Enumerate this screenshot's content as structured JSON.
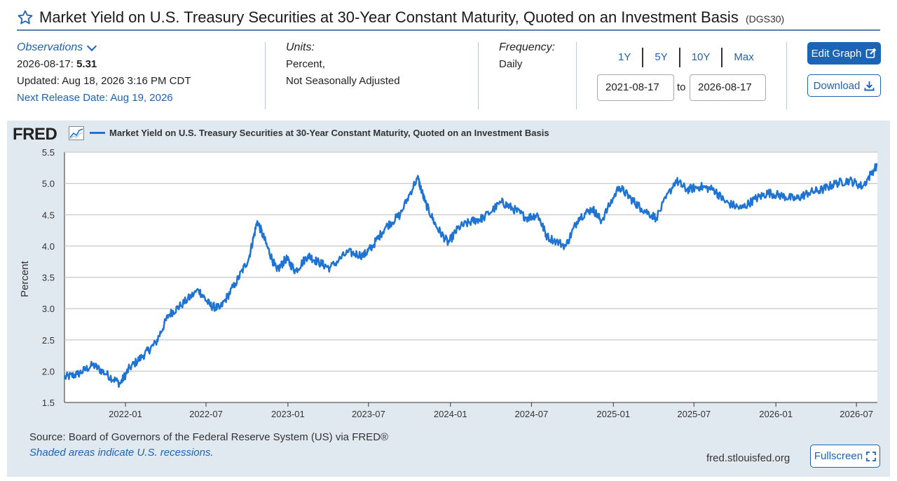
{
  "header": {
    "title": "Market Yield on U.S. Treasury Securities at 30-Year Constant Maturity, Quoted on an Investment Basis",
    "series_id": "(DGS30)"
  },
  "observations": {
    "label": "Observations",
    "date": "2026-08-17:",
    "value": "5.31",
    "updated": "Updated: Aug 18, 2026 3:16 PM CDT",
    "next_release": "Next Release Date: Aug 19, 2026"
  },
  "units": {
    "label": "Units:",
    "line1": "Percent,",
    "line2": "Not Seasonally Adjusted"
  },
  "frequency": {
    "label": "Frequency:",
    "value": "Daily"
  },
  "ranges": [
    "1Y",
    "5Y",
    "10Y",
    "Max"
  ],
  "date_range": {
    "start": "2021-08-17",
    "to": "to",
    "end": "2026-08-17"
  },
  "buttons": {
    "edit": "Edit Graph",
    "download": "Download",
    "fullscreen": "Fullscreen"
  },
  "fred": {
    "logo": "FRED"
  },
  "footer": {
    "source": "Source: Board of Governors of the Federal Reserve System (US) via FRED®",
    "recessions": "Shaded areas indicate U.S. recessions.",
    "site": "fred.stlouisfed.org"
  },
  "colors": {
    "line": "#1f73d2",
    "panel": "#e1e9f0",
    "accent": "#1d64b5"
  },
  "chart_data": {
    "type": "line",
    "ylabel": "Percent",
    "ylim": [
      1.5,
      5.5
    ],
    "yticks": [
      1.5,
      2.0,
      2.5,
      3.0,
      3.5,
      4.0,
      4.5,
      5.0,
      5.5
    ],
    "xlim": [
      "2021-08-17",
      "2026-08-17"
    ],
    "xticks": [
      "2022-01",
      "2022-07",
      "2023-01",
      "2023-07",
      "2024-01",
      "2024-07",
      "2025-01",
      "2025-07",
      "2026-01",
      "2026-07"
    ],
    "grid": true,
    "legend_position": "top-left",
    "series": [
      {
        "name": "Market Yield on U.S. Treasury Securities at 30-Year Constant Maturity, Quoted on an Investment Basis",
        "x": [
          "2021-08-17",
          "2021-09-15",
          "2021-10-20",
          "2021-11-20",
          "2021-12-20",
          "2022-01-10",
          "2022-02-10",
          "2022-03-10",
          "2022-04-08",
          "2022-05-05",
          "2022-06-14",
          "2022-07-10",
          "2022-08-01",
          "2022-09-05",
          "2022-10-05",
          "2022-10-24",
          "2022-11-15",
          "2022-12-07",
          "2022-12-28",
          "2023-01-18",
          "2023-02-15",
          "2023-03-08",
          "2023-04-05",
          "2023-05-15",
          "2023-06-20",
          "2023-07-10",
          "2023-08-08",
          "2023-09-10",
          "2023-10-19",
          "2023-11-05",
          "2023-12-01",
          "2023-12-27",
          "2024-01-20",
          "2024-02-20",
          "2024-03-15",
          "2024-04-25",
          "2024-05-20",
          "2024-06-20",
          "2024-07-15",
          "2024-08-05",
          "2024-09-16",
          "2024-10-15",
          "2024-11-15",
          "2024-12-05",
          "2025-01-14",
          "2025-02-10",
          "2025-03-05",
          "2025-04-07",
          "2025-05-21",
          "2025-06-15",
          "2025-07-15",
          "2025-08-15",
          "2025-09-10",
          "2025-10-15",
          "2025-11-15",
          "2025-12-15",
          "2026-01-15",
          "2026-02-15",
          "2026-03-15",
          "2026-04-15",
          "2026-05-15",
          "2026-06-15",
          "2026-07-15",
          "2026-08-17"
        ],
        "values": [
          1.9,
          1.95,
          2.1,
          1.95,
          1.8,
          2.05,
          2.25,
          2.45,
          2.9,
          3.05,
          3.3,
          3.05,
          3.0,
          3.4,
          3.8,
          4.4,
          4.0,
          3.6,
          3.8,
          3.6,
          3.85,
          3.75,
          3.65,
          3.9,
          3.85,
          4.0,
          4.3,
          4.5,
          5.1,
          4.7,
          4.3,
          4.05,
          4.3,
          4.4,
          4.45,
          4.7,
          4.6,
          4.45,
          4.5,
          4.15,
          4.0,
          4.45,
          4.6,
          4.4,
          4.95,
          4.75,
          4.6,
          4.45,
          5.05,
          4.9,
          4.95,
          4.9,
          4.7,
          4.6,
          4.75,
          4.85,
          4.8,
          4.75,
          4.85,
          4.9,
          5.0,
          5.05,
          4.95,
          5.31
        ]
      }
    ]
  }
}
